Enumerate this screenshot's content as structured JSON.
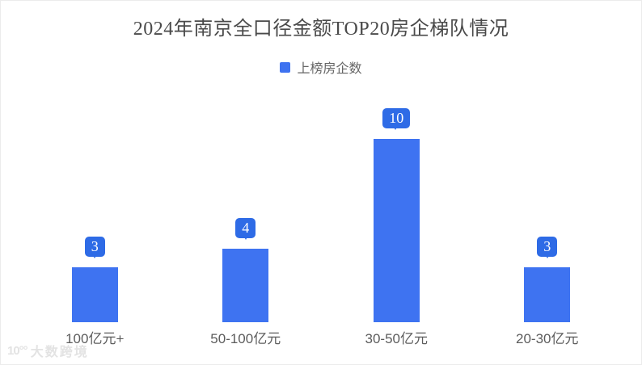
{
  "title": "2024年南京全口径金额TOP20房企梯队情况",
  "legend": {
    "label": "上榜房企数",
    "swatch_color": "#3E72F0"
  },
  "watermark": {
    "logo": "10°°",
    "text": "大数跨境"
  },
  "chart_data": {
    "type": "bar",
    "categories": [
      "100亿元+",
      "50-100亿元",
      "30-50亿元",
      "20-30亿元"
    ],
    "series": [
      {
        "name": "上榜房企数",
        "values": [
          3,
          4,
          10,
          3
        ]
      }
    ],
    "data_labels": [
      "3",
      "4",
      "10",
      "3"
    ],
    "title": "2024年南京全口径金额TOP20房企梯队情况",
    "xlabel": "",
    "ylabel": "",
    "ylim": [
      0,
      10.5
    ],
    "grid": false,
    "legend_position": "top",
    "bar_color": "#3E73F1",
    "label_bubble_color": "#2E6BE6",
    "pixels_per_unit": 22.7
  }
}
